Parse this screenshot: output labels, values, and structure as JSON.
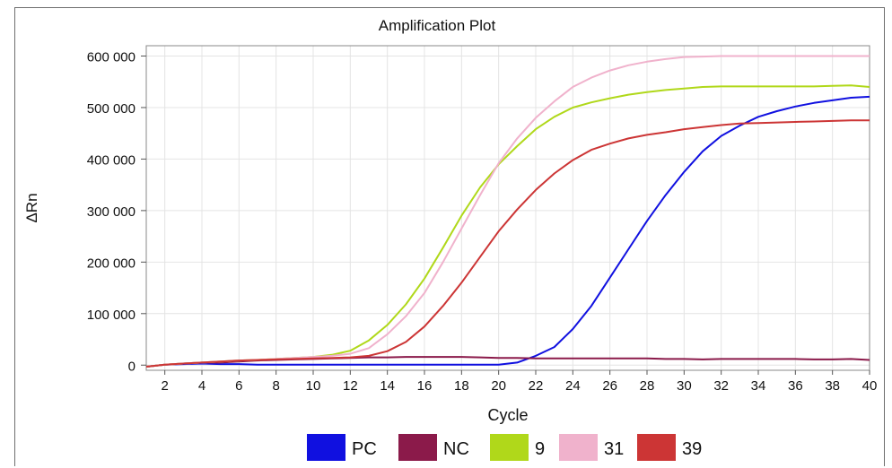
{
  "chart_data": {
    "type": "line",
    "title": "Amplification Plot",
    "xlabel": "Cycle",
    "ylabel": "ΔRn",
    "xlim": [
      1,
      40
    ],
    "ylim": [
      -10000,
      620000
    ],
    "x_ticks": [
      2,
      4,
      6,
      8,
      10,
      12,
      14,
      16,
      18,
      20,
      22,
      24,
      26,
      28,
      30,
      32,
      34,
      36,
      38,
      40
    ],
    "y_ticks": [
      0,
      100000,
      200000,
      300000,
      400000,
      500000,
      600000
    ],
    "y_tick_labels": [
      "0",
      "100 000",
      "200 000",
      "300 000",
      "400 000",
      "500 000",
      "600 000"
    ],
    "grid": true,
    "legend_position": "bottom",
    "x": [
      1,
      2,
      3,
      4,
      5,
      6,
      7,
      8,
      9,
      10,
      11,
      12,
      13,
      14,
      15,
      16,
      17,
      18,
      19,
      20,
      21,
      22,
      23,
      24,
      25,
      26,
      27,
      28,
      29,
      30,
      31,
      32,
      33,
      34,
      35,
      36,
      37,
      38,
      39,
      40
    ],
    "series": [
      {
        "name": "PC",
        "color": "#1010e0",
        "values": [
          -3000,
          1000,
          2000,
          3000,
          2000,
          2000,
          1000,
          1000,
          1000,
          1000,
          1000,
          1000,
          1000,
          1000,
          1000,
          1000,
          1000,
          1000,
          1000,
          1000,
          5000,
          18000,
          35000,
          70000,
          115000,
          170000,
          225000,
          280000,
          330000,
          375000,
          415000,
          445000,
          465000,
          482000,
          493000,
          502000,
          509000,
          514000,
          519000,
          521000
        ]
      },
      {
        "name": "NC",
        "color": "#8b1a4a",
        "values": [
          -3000,
          1000,
          3000,
          5000,
          5000,
          7000,
          9000,
          10000,
          11000,
          12000,
          13000,
          14000,
          15000,
          15000,
          16000,
          16000,
          16000,
          16000,
          15000,
          14000,
          14000,
          13000,
          13000,
          13000,
          13000,
          13000,
          13000,
          13000,
          12000,
          12000,
          11000,
          12000,
          12000,
          12000,
          12000,
          12000,
          11000,
          11000,
          12000,
          10000
        ]
      },
      {
        "name": "9",
        "color": "#b0d81a",
        "values": [
          -3000,
          1000,
          3000,
          5000,
          7000,
          9000,
          10000,
          12000,
          14000,
          16000,
          20000,
          28000,
          48000,
          78000,
          118000,
          168000,
          228000,
          290000,
          345000,
          390000,
          425000,
          458000,
          482000,
          500000,
          510000,
          518000,
          525000,
          530000,
          534000,
          537000,
          540000,
          541000,
          541000,
          541000,
          541000,
          541000,
          541000,
          542000,
          543000,
          540000
        ]
      },
      {
        "name": "31",
        "color": "#f0b2cc",
        "values": [
          -3000,
          1000,
          3000,
          5000,
          7000,
          9000,
          10000,
          12000,
          14000,
          16000,
          18000,
          22000,
          33000,
          60000,
          95000,
          140000,
          200000,
          265000,
          330000,
          392000,
          440000,
          480000,
          512000,
          540000,
          558000,
          572000,
          582000,
          589000,
          594000,
          598000,
          599000,
          600000,
          600000,
          600000,
          600000,
          600000,
          600000,
          600000,
          600000,
          600000
        ]
      },
      {
        "name": "39",
        "color": "#cc3535",
        "values": [
          -3000,
          1000,
          3000,
          5000,
          7000,
          9000,
          10000,
          11000,
          12000,
          13000,
          14000,
          15000,
          18000,
          27000,
          45000,
          75000,
          115000,
          160000,
          210000,
          260000,
          302000,
          340000,
          372000,
          398000,
          418000,
          430000,
          440000,
          447000,
          452000,
          458000,
          462000,
          466000,
          469000,
          470000,
          471000,
          472000,
          473000,
          474000,
          475000,
          475000
        ]
      }
    ]
  }
}
